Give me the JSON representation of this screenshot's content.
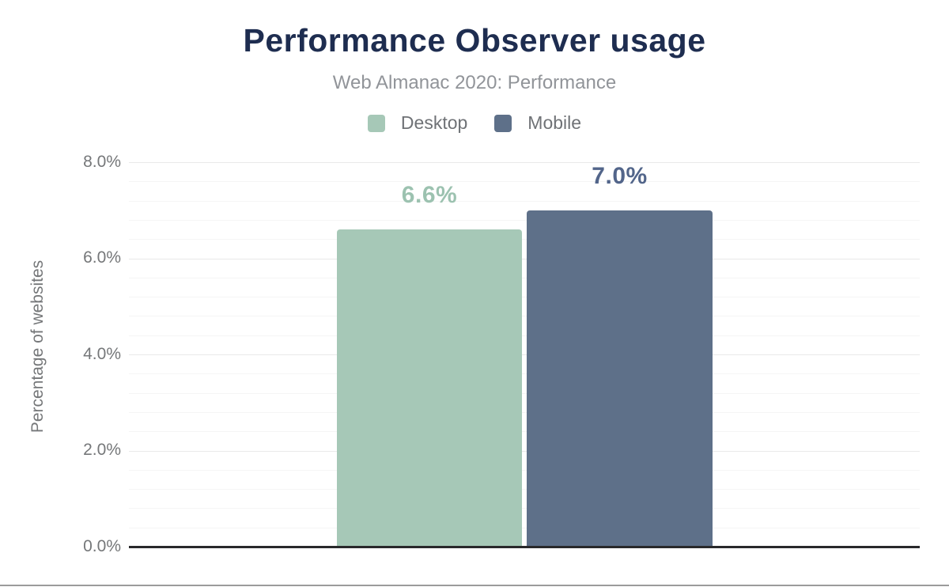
{
  "chart_data": {
    "type": "bar",
    "title": "Performance Observer usage",
    "subtitle": "Web Almanac 2020: Performance",
    "ylabel": "Percentage of websites",
    "xlabel": "",
    "categories": [
      "Desktop",
      "Mobile"
    ],
    "series": [
      {
        "name": "Desktop",
        "value": 6.6,
        "data_label": "6.6%",
        "bar_color": "#a6c8b7",
        "label_color": "#9cc2b0"
      },
      {
        "name": "Mobile",
        "value": 7.0,
        "data_label": "7.0%",
        "bar_color": "#5e7089",
        "label_color": "#52658a"
      }
    ],
    "ylim": [
      0,
      8
    ],
    "y_tick_labels": [
      "8.0%",
      "6.0%",
      "4.0%",
      "2.0%",
      "0.0%"
    ],
    "y_major_step": 2,
    "y_minor_step": 0.4,
    "grid": "horizontal major and minor gridlines",
    "legend_position": "top-center"
  },
  "theme": {
    "background": "#ffffff",
    "title_color": "#1e2d50",
    "subtitle_color": "#919499",
    "axis_text_color": "#757779",
    "axis_line_color": "#29292b",
    "grid_major_color": "#e9e9e9",
    "grid_minor_color": "#f5f5f5",
    "bottom_border_color": "#9b9b9b"
  }
}
